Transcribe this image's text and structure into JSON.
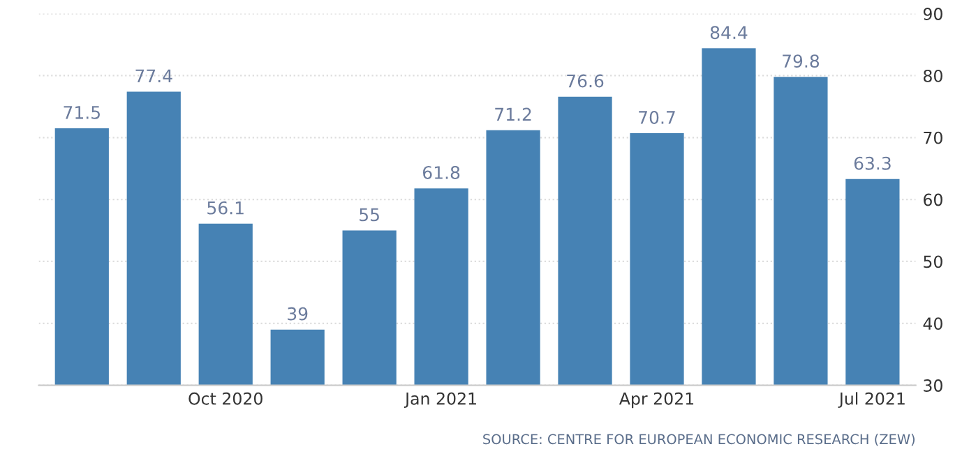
{
  "chart_data": {
    "type": "bar",
    "categories": [
      null,
      null,
      "Oct 2020",
      null,
      null,
      "Jan 2021",
      null,
      null,
      "Apr 2021",
      null,
      null,
      "Jul 2021"
    ],
    "values": [
      71.5,
      77.4,
      56.1,
      39,
      55,
      61.8,
      71.2,
      76.6,
      70.7,
      84.4,
      79.8,
      63.3
    ],
    "color": "#4682b4",
    "ylim": [
      30,
      90
    ],
    "yticks": [
      30,
      40,
      50,
      60,
      70,
      80,
      90
    ],
    "grid": "y",
    "data_labels": true,
    "annotations": [
      "SOURCE: CENTRE FOR EUROPEAN ECONOMIC RESEARCH (ZEW)"
    ]
  }
}
